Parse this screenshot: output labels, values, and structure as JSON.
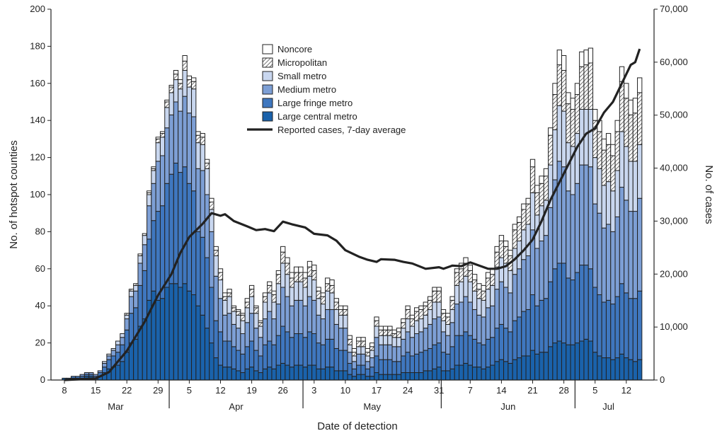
{
  "chart_data": {
    "type": "bar",
    "subtype": "stacked-bar-with-line",
    "xlabel": "Date of detection",
    "ylabel": "No. of hotspot counties",
    "y2label": "No. of cases",
    "ylim": [
      0,
      200
    ],
    "y2lim": [
      0,
      70000
    ],
    "yticks": [
      "0",
      "20",
      "40",
      "60",
      "80",
      "100",
      "120",
      "140",
      "160",
      "180",
      "200"
    ],
    "y2ticks": [
      "0",
      "10,000",
      "20,000",
      "30,000",
      "40,000",
      "50,000",
      "60,000",
      "70,000"
    ],
    "xticks": [
      "8",
      "15",
      "22",
      "29",
      "5",
      "12",
      "19",
      "26",
      "3",
      "10",
      "17",
      "24",
      "31",
      "7",
      "14",
      "21",
      "28",
      "5",
      "12"
    ],
    "months": [
      "Mar",
      "Apr",
      "May",
      "Jun",
      "Jul"
    ],
    "start_date": "Mar 8",
    "end_date": "Jul 15",
    "grid": false,
    "legend_position": "top-center",
    "series_names": [
      "Large central metro",
      "Large fringe metro",
      "Medium metro",
      "Small metro",
      "Micropolitan",
      "Noncore"
    ],
    "legend_order": [
      "Noncore",
      "Micropolitan",
      "Small metro",
      "Medium metro",
      "Large fringe metro",
      "Large central metro"
    ],
    "line_name": "Reported cases, 7-day average",
    "colors": {
      "Large central metro": "#1a62ab",
      "Large fringe metro": "#3f77bf",
      "Medium metro": "#7d9fd5",
      "Small metro": "#c9d7ef",
      "Micropolitan": "hatch",
      "Noncore": "#ffffff",
      "line": "#222222"
    },
    "daily_values": [
      [
        1,
        0,
        0,
        0,
        0,
        0
      ],
      [
        1,
        0,
        0,
        0,
        0,
        0
      ],
      [
        1,
        1,
        0,
        0,
        0,
        0
      ],
      [
        1,
        1,
        0,
        0,
        0,
        0
      ],
      [
        1,
        1,
        1,
        0,
        0,
        0
      ],
      [
        2,
        1,
        1,
        0,
        0,
        0
      ],
      [
        2,
        1,
        1,
        0,
        0,
        0
      ],
      [
        1,
        1,
        1,
        0,
        0,
        0
      ],
      [
        2,
        2,
        1,
        0,
        0,
        0
      ],
      [
        4,
        3,
        2,
        1,
        0,
        0
      ],
      [
        6,
        5,
        2,
        1,
        0,
        0
      ],
      [
        7,
        6,
        3,
        1,
        0,
        0
      ],
      [
        8,
        7,
        4,
        2,
        0,
        0
      ],
      [
        10,
        9,
        4,
        2,
        0,
        0
      ],
      [
        15,
        12,
        6,
        2,
        1,
        0
      ],
      [
        20,
        16,
        9,
        3,
        1,
        0
      ],
      [
        22,
        17,
        9,
        3,
        1,
        0
      ],
      [
        29,
        22,
        12,
        4,
        1,
        0
      ],
      [
        33,
        26,
        14,
        5,
        1,
        0
      ],
      [
        43,
        33,
        18,
        6,
        1,
        1
      ],
      [
        48,
        38,
        20,
        7,
        1,
        1
      ],
      [
        43,
        48,
        27,
        10,
        2,
        1
      ],
      [
        44,
        50,
        27,
        10,
        2,
        1
      ],
      [
        50,
        56,
        30,
        11,
        3,
        1
      ],
      [
        52,
        59,
        32,
        12,
        3,
        1
      ],
      [
        52,
        65,
        33,
        12,
        3,
        2
      ],
      [
        50,
        62,
        33,
        12,
        3,
        2
      ],
      [
        52,
        63,
        38,
        14,
        5,
        3
      ],
      [
        48,
        58,
        38,
        14,
        4,
        2
      ],
      [
        46,
        56,
        40,
        15,
        4,
        2
      ],
      [
        40,
        40,
        34,
        14,
        4,
        2
      ],
      [
        35,
        42,
        36,
        14,
        4,
        2
      ],
      [
        28,
        38,
        34,
        14,
        3,
        2
      ],
      [
        20,
        30,
        30,
        12,
        4,
        2
      ],
      [
        12,
        20,
        24,
        11,
        3,
        2
      ],
      [
        8,
        18,
        18,
        10,
        4,
        2
      ],
      [
        7,
        14,
        14,
        8,
        2,
        2
      ],
      [
        7,
        14,
        15,
        9,
        2,
        2
      ],
      [
        6,
        12,
        12,
        7,
        2,
        1
      ],
      [
        5,
        11,
        12,
        7,
        2,
        1
      ],
      [
        4,
        10,
        11,
        7,
        3,
        1
      ],
      [
        6,
        12,
        13,
        8,
        3,
        2
      ],
      [
        7,
        14,
        15,
        9,
        4,
        2
      ],
      [
        5,
        11,
        12,
        8,
        3,
        1
      ],
      [
        4,
        9,
        10,
        6,
        2,
        1
      ],
      [
        6,
        13,
        14,
        9,
        3,
        2
      ],
      [
        7,
        14,
        16,
        10,
        4,
        2
      ],
      [
        6,
        13,
        14,
        9,
        4,
        2
      ],
      [
        8,
        16,
        17,
        11,
        5,
        2
      ],
      [
        9,
        20,
        21,
        13,
        6,
        3
      ],
      [
        8,
        18,
        19,
        12,
        6,
        3
      ],
      [
        7,
        16,
        17,
        10,
        5,
        3
      ],
      [
        8,
        17,
        18,
        10,
        5,
        3
      ],
      [
        8,
        17,
        18,
        10,
        5,
        3
      ],
      [
        7,
        16,
        17,
        10,
        5,
        3
      ],
      [
        8,
        18,
        19,
        11,
        5,
        3
      ],
      [
        8,
        17,
        18,
        11,
        5,
        3
      ],
      [
        6,
        14,
        15,
        9,
        4,
        2
      ],
      [
        6,
        13,
        14,
        8,
        4,
        2
      ],
      [
        7,
        15,
        16,
        10,
        4,
        3
      ],
      [
        7,
        15,
        16,
        9,
        4,
        3
      ],
      [
        5,
        12,
        13,
        8,
        4,
        2
      ],
      [
        5,
        11,
        12,
        7,
        3,
        2
      ],
      [
        5,
        11,
        12,
        7,
        3,
        2
      ],
      [
        3,
        6,
        6,
        4,
        3,
        2
      ],
      [
        2,
        4,
        4,
        3,
        2,
        2
      ],
      [
        3,
        5,
        6,
        4,
        3,
        2
      ],
      [
        3,
        5,
        6,
        4,
        3,
        2
      ],
      [
        2,
        4,
        4,
        3,
        2,
        2
      ],
      [
        2,
        5,
        5,
        4,
        2,
        2
      ],
      [
        4,
        9,
        10,
        6,
        3,
        2
      ],
      [
        3,
        8,
        8,
        5,
        3,
        2
      ],
      [
        3,
        8,
        8,
        5,
        3,
        2
      ],
      [
        3,
        8,
        8,
        5,
        3,
        2
      ],
      [
        3,
        7,
        8,
        5,
        2,
        2
      ],
      [
        3,
        7,
        8,
        5,
        3,
        2
      ],
      [
        4,
        9,
        9,
        6,
        3,
        2
      ],
      [
        4,
        11,
        11,
        7,
        5,
        2
      ],
      [
        4,
        9,
        10,
        6,
        4,
        2
      ],
      [
        4,
        10,
        11,
        7,
        5,
        2
      ],
      [
        4,
        11,
        11,
        7,
        5,
        2
      ],
      [
        5,
        11,
        12,
        7,
        5,
        2
      ],
      [
        5,
        12,
        13,
        8,
        5,
        2
      ],
      [
        6,
        13,
        14,
        9,
        6,
        2
      ],
      [
        7,
        13,
        14,
        8,
        6,
        2
      ],
      [
        5,
        10,
        11,
        6,
        4,
        2
      ],
      [
        5,
        9,
        10,
        6,
        4,
        2
      ],
      [
        6,
        12,
        13,
        7,
        5,
        2
      ],
      [
        8,
        16,
        17,
        10,
        7,
        2
      ],
      [
        8,
        16,
        18,
        11,
        7,
        3
      ],
      [
        9,
        17,
        19,
        11,
        7,
        3
      ],
      [
        8,
        16,
        18,
        11,
        6,
        3
      ],
      [
        7,
        15,
        16,
        10,
        6,
        3
      ],
      [
        7,
        13,
        15,
        9,
        5,
        3
      ],
      [
        6,
        13,
        15,
        9,
        5,
        3
      ],
      [
        7,
        15,
        17,
        10,
        6,
        3
      ],
      [
        8,
        15,
        17,
        11,
        6,
        3
      ],
      [
        10,
        18,
        21,
        12,
        8,
        3
      ],
      [
        11,
        19,
        23,
        13,
        9,
        3
      ],
      [
        10,
        18,
        22,
        13,
        9,
        3
      ],
      [
        9,
        17,
        21,
        12,
        8,
        3
      ],
      [
        11,
        21,
        25,
        14,
        10,
        3
      ],
      [
        12,
        22,
        26,
        15,
        10,
        3
      ],
      [
        13,
        24,
        28,
        16,
        11,
        3
      ],
      [
        13,
        25,
        29,
        17,
        11,
        3
      ],
      [
        16,
        30,
        35,
        20,
        14,
        4
      ],
      [
        14,
        26,
        31,
        18,
        12,
        4
      ],
      [
        15,
        28,
        32,
        19,
        12,
        4
      ],
      [
        15,
        29,
        34,
        19,
        13,
        4
      ],
      [
        18,
        35,
        40,
        23,
        16,
        4
      ],
      [
        20,
        40,
        48,
        27,
        19,
        6
      ],
      [
        21,
        42,
        55,
        30,
        22,
        8
      ],
      [
        20,
        43,
        52,
        30,
        22,
        8
      ],
      [
        19,
        36,
        47,
        26,
        21,
        6
      ],
      [
        19,
        35,
        46,
        26,
        20,
        6
      ],
      [
        20,
        38,
        48,
        27,
        21,
        6
      ],
      [
        21,
        41,
        54,
        30,
        23,
        8
      ],
      [
        22,
        40,
        54,
        30,
        24,
        8
      ],
      [
        21,
        39,
        55,
        31,
        25,
        8
      ],
      [
        15,
        35,
        45,
        25,
        20,
        6
      ],
      [
        13,
        33,
        44,
        24,
        20,
        6
      ],
      [
        12,
        30,
        40,
        23,
        19,
        6
      ],
      [
        12,
        31,
        41,
        23,
        20,
        6
      ],
      [
        11,
        30,
        39,
        22,
        19,
        6
      ],
      [
        12,
        33,
        43,
        25,
        21,
        6
      ],
      [
        14,
        38,
        52,
        30,
        27,
        8
      ],
      [
        12,
        35,
        50,
        29,
        26,
        8
      ],
      [
        11,
        33,
        47,
        27,
        25,
        8
      ],
      [
        10,
        34,
        47,
        27,
        26,
        8
      ],
      [
        11,
        37,
        50,
        29,
        28,
        8
      ]
    ],
    "cases_line": [
      [
        "Mar 8",
        0
      ],
      [
        "Mar 15",
        300
      ],
      [
        "Mar 18",
        1500
      ],
      [
        "Mar 22",
        5500
      ],
      [
        "Mar 26",
        11000
      ],
      [
        "Mar 29",
        16000
      ],
      [
        "Apr 1",
        20000
      ],
      [
        "Apr 3",
        24000
      ],
      [
        "Apr 5",
        27000
      ],
      [
        "Apr 8",
        29500
      ],
      [
        "Apr 10",
        31500
      ],
      [
        "Apr 12",
        31000
      ],
      [
        "Apr 13",
        31300
      ],
      [
        "Apr 15",
        30000
      ],
      [
        "Apr 18",
        29000
      ],
      [
        "Apr 20",
        28300
      ],
      [
        "Apr 22",
        28500
      ],
      [
        "Apr 24",
        28100
      ],
      [
        "Apr 26",
        29900
      ],
      [
        "Apr 28",
        29400
      ],
      [
        "May 1",
        28800
      ],
      [
        "May 3",
        27600
      ],
      [
        "May 6",
        27300
      ],
      [
        "May 8",
        26300
      ],
      [
        "May 10",
        24500
      ],
      [
        "May 13",
        23300
      ],
      [
        "May 15",
        22700
      ],
      [
        "May 17",
        22300
      ],
      [
        "May 18",
        22800
      ],
      [
        "May 21",
        22700
      ],
      [
        "May 23",
        22300
      ],
      [
        "May 25",
        22000
      ],
      [
        "May 28",
        21000
      ],
      [
        "May 31",
        21300
      ],
      [
        "Jun 1",
        21000
      ],
      [
        "Jun 3",
        21600
      ],
      [
        "Jun 5",
        21500
      ],
      [
        "Jun 7",
        22200
      ],
      [
        "Jun 9",
        21600
      ],
      [
        "Jun 11",
        21000
      ],
      [
        "Jun 13",
        21000
      ],
      [
        "Jun 15",
        21500
      ],
      [
        "Jun 17",
        22800
      ],
      [
        "Jun 19",
        24500
      ],
      [
        "Jun 21",
        26500
      ],
      [
        "Jun 23",
        30000
      ],
      [
        "Jun 25",
        34000
      ],
      [
        "Jun 28",
        39000
      ],
      [
        "Jul 1",
        44000
      ],
      [
        "Jul 3",
        46500
      ],
      [
        "Jul 5",
        47500
      ],
      [
        "Jul 7",
        50500
      ],
      [
        "Jul 9",
        52500
      ],
      [
        "Jul 11",
        56000
      ],
      [
        "Jul 13",
        59500
      ],
      [
        "Jul 14",
        60000
      ],
      [
        "Jul 15",
        62500
      ]
    ]
  }
}
